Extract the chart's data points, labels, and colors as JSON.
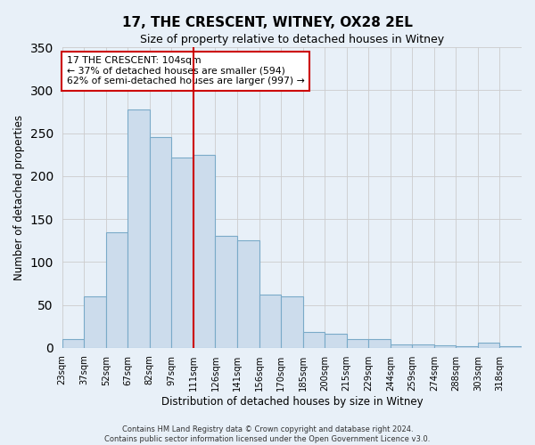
{
  "title": "17, THE CRESCENT, WITNEY, OX28 2EL",
  "subtitle": "Size of property relative to detached houses in Witney",
  "xlabel": "Distribution of detached houses by size in Witney",
  "ylabel": "Number of detached properties",
  "bar_labels": [
    "23sqm",
    "37sqm",
    "52sqm",
    "67sqm",
    "82sqm",
    "97sqm",
    "111sqm",
    "126sqm",
    "141sqm",
    "156sqm",
    "170sqm",
    "185sqm",
    "200sqm",
    "215sqm",
    "229sqm",
    "244sqm",
    "259sqm",
    "274sqm",
    "288sqm",
    "303sqm",
    "318sqm"
  ],
  "bar_values": [
    10,
    60,
    135,
    278,
    245,
    222,
    225,
    130,
    125,
    62,
    60,
    19,
    16,
    10,
    10,
    4,
    4,
    3,
    2,
    6,
    2
  ],
  "bar_color": "#ccdcec",
  "bar_edge_color": "#7aaac8",
  "grid_color": "#cccccc",
  "bg_color": "#e8f0f8",
  "vline_x_index": 6,
  "vline_color": "#cc0000",
  "annotation_title": "17 THE CRESCENT: 104sqm",
  "annotation_line1": "← 37% of detached houses are smaller (594)",
  "annotation_line2": "62% of semi-detached houses are larger (997) →",
  "annotation_box_color": "#cc0000",
  "footer_line1": "Contains HM Land Registry data © Crown copyright and database right 2024.",
  "footer_line2": "Contains public sector information licensed under the Open Government Licence v3.0.",
  "ylim": [
    0,
    350
  ],
  "bin_edges": [
    23,
    37,
    52,
    67,
    82,
    97,
    111,
    126,
    141,
    156,
    170,
    185,
    200,
    215,
    229,
    244,
    259,
    274,
    288,
    303,
    318,
    333
  ]
}
